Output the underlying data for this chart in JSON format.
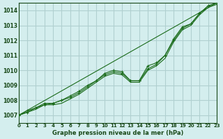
{
  "background_color": "#d4eeee",
  "grid_color": "#b0d0d0",
  "line_color": "#1a6b1a",
  "text_color": "#1a4a1a",
  "title": "Graphe pression niveau de la mer (hPa)",
  "xlim": [
    0,
    23
  ],
  "ylim": [
    1006.5,
    1014.5
  ],
  "yticks": [
    1007,
    1008,
    1009,
    1010,
    1011,
    1012,
    1013,
    1014
  ],
  "xticks": [
    0,
    1,
    2,
    3,
    4,
    5,
    6,
    7,
    8,
    9,
    10,
    11,
    12,
    13,
    14,
    15,
    16,
    17,
    18,
    19,
    20,
    21,
    22,
    23
  ],
  "series1_x": [
    0,
    1,
    2,
    3,
    4,
    5,
    6,
    7,
    8,
    9,
    10,
    11,
    12,
    13,
    14,
    15,
    16,
    17,
    18,
    19,
    20,
    21,
    22,
    23
  ],
  "series1_y": [
    1007.0,
    1007.3,
    1007.5,
    1007.7,
    1007.8,
    1008.0,
    1008.2,
    1008.5,
    1008.9,
    1009.3,
    1009.7,
    1009.9,
    1009.8,
    1009.3,
    1009.3,
    1010.3,
    1010.5,
    1011.0,
    1012.0,
    1012.8,
    1013.1,
    1013.8,
    1014.3,
    1014.5
  ],
  "series2_x": [
    0,
    1,
    2,
    3,
    4,
    5,
    6,
    7,
    8,
    9,
    10,
    11,
    12,
    13,
    14,
    15,
    16,
    17,
    18,
    19,
    20,
    21,
    22,
    23
  ],
  "series2_y": [
    1007.0,
    1007.2,
    1007.5,
    1007.8,
    1007.8,
    1008.0,
    1008.3,
    1008.6,
    1009.0,
    1009.3,
    1009.8,
    1010.0,
    1009.9,
    1009.3,
    1009.3,
    1010.1,
    1010.4,
    1011.0,
    1012.1,
    1012.9,
    1013.1,
    1013.8,
    1014.3,
    1014.5
  ],
  "series3_x": [
    0,
    1,
    2,
    3,
    4,
    5,
    6,
    7,
    8,
    9,
    10,
    11,
    12,
    13,
    14,
    15,
    16,
    17,
    18,
    19,
    20,
    21,
    22,
    23
  ],
  "series3_y": [
    1007.0,
    1007.2,
    1007.4,
    1007.7,
    1007.7,
    1007.8,
    1008.1,
    1008.4,
    1008.8,
    1009.2,
    1009.6,
    1009.8,
    1009.7,
    1009.2,
    1009.2,
    1010.0,
    1010.3,
    1010.8,
    1011.9,
    1012.7,
    1013.0,
    1013.7,
    1014.2,
    1014.4
  ]
}
